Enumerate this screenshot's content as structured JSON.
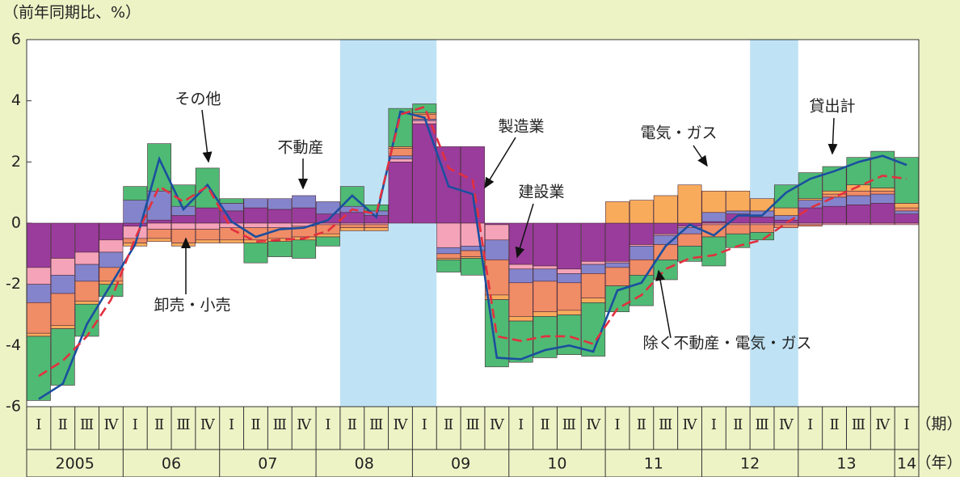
{
  "chart_data": {
    "type": "stacked-bar-line",
    "y_axis_label": "（前年同期比、%）",
    "x_axis_label": "（期）",
    "x_group_label": "（年）",
    "categories": [
      "Ⅰ",
      "Ⅱ",
      "Ⅲ",
      "Ⅳ",
      "Ⅰ",
      "Ⅱ",
      "Ⅲ",
      "Ⅳ",
      "Ⅰ",
      "Ⅱ",
      "Ⅲ",
      "Ⅳ",
      "Ⅰ",
      "Ⅱ",
      "Ⅲ",
      "Ⅳ",
      "Ⅰ",
      "Ⅱ",
      "Ⅲ",
      "Ⅳ",
      "Ⅰ",
      "Ⅱ",
      "Ⅲ",
      "Ⅳ",
      "Ⅰ",
      "Ⅱ",
      "Ⅲ",
      "Ⅳ",
      "Ⅰ",
      "Ⅱ",
      "Ⅲ",
      "Ⅳ",
      "Ⅰ",
      "Ⅱ",
      "Ⅲ",
      "Ⅳ",
      "Ⅰ"
    ],
    "x_groups": [
      "2005",
      null,
      null,
      null,
      "06",
      null,
      null,
      null,
      "07",
      null,
      null,
      null,
      "08",
      null,
      null,
      null,
      "09",
      null,
      null,
      null,
      "10",
      null,
      null,
      null,
      "11",
      null,
      null,
      null,
      "12",
      null,
      null,
      null,
      "13",
      null,
      null,
      null,
      "14"
    ],
    "shade": [
      [
        13,
        16
      ],
      [
        30,
        31
      ]
    ],
    "ylim": [
      -6,
      6
    ],
    "yticks": [
      -6,
      -4,
      -2,
      0,
      2,
      4,
      6
    ],
    "series": [
      {
        "name": "製造業",
        "color": "#9a3c9c",
        "values": [
          -1.45,
          -1.15,
          -0.95,
          -0.55,
          -0.1,
          0.1,
          0.25,
          0.5,
          0.4,
          0.5,
          0.45,
          0.5,
          0.3,
          0.35,
          0.25,
          2.0,
          3.25,
          2.5,
          2.5,
          -0.05,
          -1.35,
          -1.4,
          -1.5,
          -1.25,
          -1.25,
          -0.7,
          -0.35,
          -0.1,
          0.05,
          0.3,
          0.2,
          0.1,
          0.5,
          0.55,
          0.6,
          0.65,
          0.3
        ]
      },
      {
        "name": "建設業",
        "color": "#f5a3b8",
        "values": [
          -0.55,
          -0.55,
          -0.4,
          -0.4,
          -0.4,
          -0.2,
          -0.2,
          -0.2,
          -0.15,
          -0.15,
          -0.15,
          -0.1,
          -0.05,
          -0.05,
          -0.05,
          0.1,
          0.1,
          -0.8,
          -0.75,
          -0.5,
          -0.15,
          -0.1,
          -0.15,
          -0.1,
          -0.05,
          -0.05,
          -0.05,
          -0.05,
          -0.05,
          -0.05,
          -0.05,
          -0.05,
          -0.05,
          -0.05,
          -0.05,
          -0.05,
          -0.05
        ]
      },
      {
        "name": "不動産",
        "color": "#8484cc",
        "values": [
          -0.6,
          -0.6,
          -0.55,
          -0.5,
          0.75,
          0.95,
          0.3,
          0.0,
          0.25,
          0.3,
          0.35,
          0.4,
          0.4,
          0.2,
          0.15,
          0.1,
          0.05,
          -0.2,
          -0.15,
          -0.65,
          -0.45,
          -0.4,
          -0.3,
          -0.3,
          -0.15,
          -0.45,
          -0.3,
          -0.2,
          0.3,
          0.1,
          0.2,
          0.15,
          0.25,
          0.3,
          0.3,
          0.3,
          0.1
        ]
      },
      {
        "name": "卸売・小売",
        "color": "#f08c66",
        "values": [
          -1.0,
          -1.05,
          -0.65,
          -0.45,
          -0.15,
          -0.3,
          -0.45,
          -0.35,
          -0.4,
          -0.4,
          -0.35,
          -0.35,
          -0.3,
          -0.1,
          -0.1,
          0.25,
          0.15,
          -0.15,
          -0.2,
          -1.15,
          -1.1,
          -1.0,
          -0.9,
          -0.8,
          -0.6,
          -0.5,
          -0.5,
          -0.4,
          -0.4,
          -0.3,
          -0.25,
          -0.1,
          -0.05,
          0.1,
          0.15,
          0.1,
          0.1
        ]
      },
      {
        "name": "電気・ガス",
        "color": "#f9ab5c",
        "values": [
          -0.1,
          -0.1,
          -0.1,
          -0.1,
          -0.1,
          -0.1,
          -0.1,
          -0.1,
          -0.1,
          -0.1,
          -0.1,
          -0.1,
          -0.1,
          -0.1,
          -0.1,
          0.05,
          0.05,
          -0.05,
          -0.05,
          -0.15,
          -0.15,
          -0.15,
          -0.15,
          -0.15,
          0.7,
          0.75,
          0.9,
          1.25,
          0.7,
          0.65,
          0.4,
          0.25,
          0.05,
          0.1,
          0.2,
          0.1,
          0.15
        ]
      },
      {
        "name": "その他",
        "color": "#4fba74",
        "values": [
          -2.1,
          -1.85,
          -1.05,
          -0.4,
          0.45,
          1.55,
          0.7,
          1.3,
          0.15,
          -0.65,
          -0.5,
          -0.6,
          -0.3,
          0.65,
          0.2,
          1.25,
          0.3,
          -0.4,
          -0.55,
          -2.2,
          -1.35,
          -1.35,
          -1.3,
          -1.75,
          -0.85,
          -1.0,
          -0.65,
          -0.5,
          -0.95,
          -0.45,
          -0.25,
          0.75,
          0.85,
          0.8,
          0.9,
          1.2,
          1.5
        ]
      }
    ],
    "lines": [
      {
        "name": "貸出計",
        "color": "#1b4f9f",
        "style": "solid",
        "values": [
          -5.75,
          -5.25,
          -3.3,
          -2.0,
          -0.7,
          2.1,
          0.45,
          1.25,
          0.05,
          -0.45,
          -0.2,
          -0.15,
          0.1,
          0.9,
          0.2,
          3.65,
          3.45,
          1.2,
          0.95,
          -4.4,
          -4.45,
          -4.15,
          -4.0,
          -4.2,
          -2.2,
          -1.95,
          -0.75,
          -0.05,
          -0.4,
          0.25,
          0.25,
          1.0,
          1.45,
          1.7,
          2.0,
          2.2,
          1.9
        ]
      },
      {
        "name": "除く不動産・電気・ガス",
        "color": "#e3303e",
        "style": "dashed",
        "values": [
          -5.0,
          -4.5,
          -3.7,
          -2.5,
          -0.5,
          1.2,
          0.7,
          1.2,
          -0.2,
          -0.6,
          -0.55,
          -0.5,
          -0.25,
          0.45,
          0.3,
          3.55,
          3.8,
          1.8,
          1.4,
          -3.7,
          -3.85,
          -3.7,
          -3.7,
          -3.95,
          -2.8,
          -2.35,
          -1.5,
          -1.15,
          -1.05,
          -0.75,
          -0.55,
          0.0,
          0.5,
          0.85,
          1.2,
          1.55,
          1.45
        ]
      }
    ]
  }
}
